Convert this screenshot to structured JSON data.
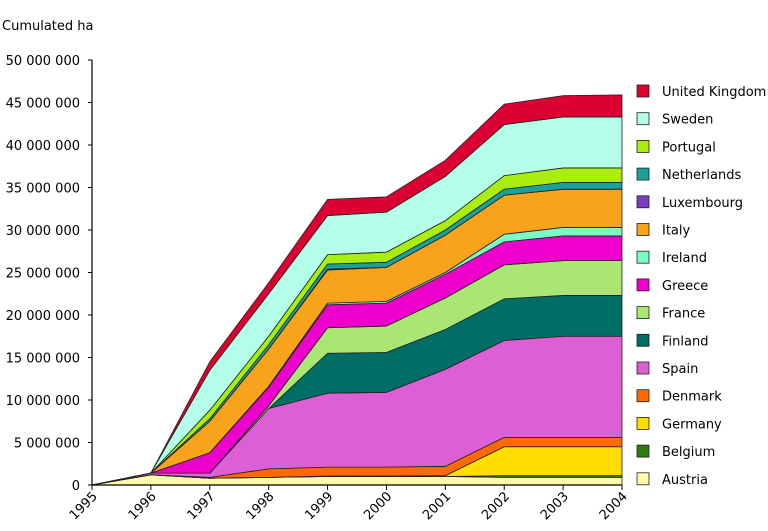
{
  "chart_data": {
    "type": "area",
    "stacked": true,
    "title": "",
    "ylabel": "Cumulated ha",
    "xlabel": "",
    "ylim": [
      0,
      50000000
    ],
    "yticks": [
      "0",
      "5 000 000",
      "10 000 000",
      "15 000 000",
      "20 000 000",
      "25 000 000",
      "30 000 000",
      "35 000 000",
      "40 000 000",
      "45 000 000",
      "50 000 000"
    ],
    "x": [
      "1995",
      "1996",
      "1997",
      "1998",
      "1999",
      "2000",
      "2001",
      "2002",
      "2003",
      "2004"
    ],
    "legend_position": "right",
    "series": [
      {
        "name": "Austria",
        "color": "#fffaaa",
        "values": [
          0,
          1.2,
          0.8,
          0.9,
          1.0,
          1.0,
          1.0,
          0.9,
          0.9,
          0.9
        ]
      },
      {
        "name": "Belgium",
        "color": "#2f7a10",
        "values": [
          0,
          0,
          0,
          0,
          0,
          0,
          0,
          0.2,
          0.2,
          0.2
        ]
      },
      {
        "name": "Germany",
        "color": "#ffdd00",
        "values": [
          0,
          0,
          0,
          0,
          0.05,
          0.05,
          0.1,
          3.4,
          3.4,
          3.4
        ]
      },
      {
        "name": "Denmark",
        "color": "#ff6a00",
        "values": [
          0,
          0,
          0.1,
          1.0,
          1.05,
          1.05,
          1.1,
          1.1,
          1.1,
          1.1
        ]
      },
      {
        "name": "Spain",
        "color": "#dd5fd5",
        "values": [
          0,
          0.2,
          0.5,
          7.1,
          8.7,
          8.8,
          11.4,
          11.4,
          11.9,
          11.9
        ]
      },
      {
        "name": "Finland",
        "color": "#006e64",
        "values": [
          0,
          0,
          0,
          0,
          4.7,
          4.7,
          4.7,
          4.9,
          4.8,
          4.8
        ]
      },
      {
        "name": "France",
        "color": "#aae673",
        "values": [
          0,
          0,
          0,
          0.3,
          3.0,
          3.1,
          3.7,
          4.0,
          4.1,
          4.1
        ]
      },
      {
        "name": "Greece",
        "color": "#ee00cc",
        "values": [
          0,
          0,
          2.4,
          2.2,
          2.7,
          2.7,
          2.8,
          2.7,
          2.9,
          2.9
        ]
      },
      {
        "name": "Ireland",
        "color": "#7dfbc4",
        "values": [
          0,
          0,
          0,
          0.1,
          0.2,
          0.2,
          0.2,
          0.9,
          1.0,
          1.0
        ]
      },
      {
        "name": "Italy",
        "color": "#f8a31c",
        "values": [
          0,
          0,
          3.7,
          4.4,
          3.9,
          4.0,
          4.4,
          4.6,
          4.5,
          4.5
        ]
      },
      {
        "name": "Luxembourg",
        "color": "#7a3fc0",
        "values": [
          0,
          0,
          0,
          0,
          0.1,
          0,
          0,
          0,
          0,
          0
        ]
      },
      {
        "name": "Netherlands",
        "color": "#1aa29a",
        "values": [
          0,
          0,
          0.3,
          0.5,
          0.6,
          0.6,
          0.6,
          0.7,
          0.8,
          0.8
        ]
      },
      {
        "name": "Portugal",
        "color": "#aaee11",
        "values": [
          0,
          0,
          1.0,
          1.0,
          1.1,
          1.2,
          1.1,
          1.6,
          1.7,
          1.7
        ]
      },
      {
        "name": "Sweden",
        "color": "#b3fde9",
        "values": [
          0,
          0,
          4.7,
          5.0,
          4.6,
          4.7,
          5.2,
          6.0,
          6.0,
          6.0
        ]
      },
      {
        "name": "United Kingdom",
        "color": "#dc0032",
        "values": [
          0,
          0,
          1.0,
          1.3,
          1.9,
          1.8,
          1.9,
          2.4,
          2.5,
          2.6
        ]
      }
    ],
    "value_unit": "million ha"
  }
}
